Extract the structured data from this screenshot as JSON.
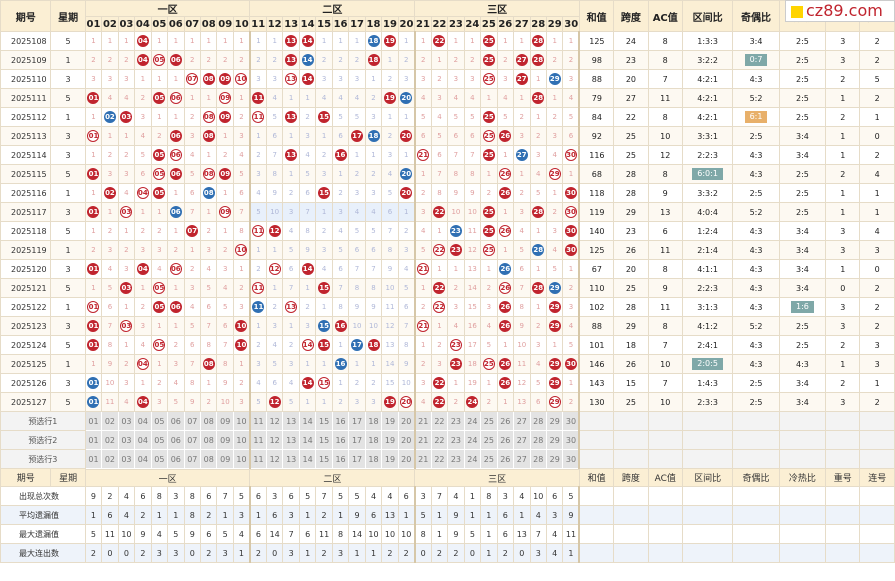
{
  "header": {
    "period": "期号",
    "week": "星期",
    "zones": [
      "一区",
      "二区",
      "三区"
    ],
    "stats": [
      "和值",
      "跨度",
      "AC值",
      "区间比",
      "奇偶比",
      "冷热比",
      "重号",
      "连号"
    ],
    "numbers": [
      "01",
      "02",
      "03",
      "04",
      "05",
      "06",
      "07",
      "08",
      "09",
      "10",
      "11",
      "12",
      "13",
      "14",
      "15",
      "16",
      "17",
      "18",
      "19",
      "20",
      "21",
      "22",
      "23",
      "24",
      "25",
      "26",
      "27",
      "28",
      "29",
      "30"
    ]
  },
  "rows": [
    {
      "period": "2025108",
      "week": "5",
      "balls": [
        4,
        13,
        14,
        18,
        19,
        22,
        25,
        28
      ],
      "blue": [
        18
      ],
      "sum": "125",
      "span": "24",
      "ac": "8",
      "zone": "1:3:3",
      "oe": "3:4",
      "hc": "2:5",
      "rep": "3",
      "con": "2"
    },
    {
      "period": "2025109",
      "week": "1",
      "balls": [
        4,
        5,
        6,
        13,
        14,
        18,
        25,
        27,
        28
      ],
      "blue": [
        14
      ],
      "sum": "98",
      "span": "23",
      "ac": "8",
      "zone": "3:2:2",
      "oe": "0:7",
      "hc": "2:5",
      "rep": "3",
      "con": "2",
      "oeTag": true
    },
    {
      "period": "2025110",
      "week": "3",
      "balls": [
        7,
        8,
        9,
        10,
        13,
        14,
        25,
        27,
        29
      ],
      "blue": [
        29
      ],
      "sum": "88",
      "span": "20",
      "ac": "7",
      "zone": "4:2:1",
      "oe": "4:3",
      "hc": "2:5",
      "rep": "2",
      "con": "5"
    },
    {
      "period": "2025111",
      "week": "5",
      "balls": [
        1,
        5,
        6,
        9,
        11,
        19,
        20,
        28
      ],
      "blue": [
        20
      ],
      "sum": "79",
      "span": "27",
      "ac": "11",
      "zone": "4:2:1",
      "oe": "5:2",
      "hc": "2:5",
      "rep": "1",
      "con": "2"
    },
    {
      "period": "2025112",
      "week": "1",
      "balls": [
        2,
        3,
        8,
        9,
        11,
        13,
        15,
        25
      ],
      "blue": [
        2
      ],
      "sum": "84",
      "span": "22",
      "ac": "8",
      "zone": "4:2:1",
      "oe": "6:1",
      "hc": "2:5",
      "rep": "2",
      "con": "1",
      "oeTag": true,
      "oeGold": true
    },
    {
      "period": "2025113",
      "week": "3",
      "balls": [
        1,
        6,
        8,
        17,
        18,
        20,
        25,
        26
      ],
      "blue": [
        18
      ],
      "sum": "92",
      "span": "25",
      "ac": "10",
      "zone": "3:3:1",
      "oe": "2:5",
      "hc": "3:4",
      "rep": "1",
      "con": "0"
    },
    {
      "period": "2025114",
      "week": "3",
      "balls": [
        5,
        6,
        13,
        16,
        21,
        25,
        27,
        30
      ],
      "blue": [
        27
      ],
      "sum": "116",
      "span": "25",
      "ac": "12",
      "zone": "2:2:3",
      "oe": "4:3",
      "hc": "3:4",
      "rep": "1",
      "con": "2"
    },
    {
      "period": "2025115",
      "week": "5",
      "balls": [
        1,
        5,
        6,
        8,
        9,
        20,
        26,
        29
      ],
      "blue": [
        20
      ],
      "sum": "68",
      "span": "28",
      "ac": "8",
      "zone": "6:0:1",
      "oe": "4:3",
      "hc": "2:5",
      "rep": "2",
      "con": "4",
      "zoneTag": true
    },
    {
      "period": "2025116",
      "week": "1",
      "balls": [
        2,
        4,
        5,
        8,
        15,
        20,
        26,
        30
      ],
      "blue": [
        8
      ],
      "sum": "118",
      "span": "28",
      "ac": "9",
      "zone": "3:3:2",
      "oe": "2:5",
      "hc": "2:5",
      "rep": "1",
      "con": "1"
    },
    {
      "period": "2025117",
      "week": "3",
      "balls": [
        1,
        3,
        6,
        9,
        22,
        25,
        28,
        30
      ],
      "blue": [
        6
      ],
      "sum": "119",
      "span": "29",
      "ac": "13",
      "zone": "4:0:4",
      "oe": "5:2",
      "hc": "2:5",
      "rep": "1",
      "con": "1",
      "hl": true
    },
    {
      "period": "2025118",
      "week": "5",
      "balls": [
        7,
        11,
        12,
        23,
        25,
        26,
        30
      ],
      "blue": [
        23
      ],
      "sum": "140",
      "span": "23",
      "ac": "6",
      "zone": "1:2:4",
      "oe": "4:3",
      "hc": "3:4",
      "rep": "3",
      "con": "4"
    },
    {
      "period": "2025119",
      "week": "1",
      "balls": [
        10,
        22,
        23,
        25,
        28,
        30
      ],
      "blue": [
        28
      ],
      "sum": "125",
      "span": "26",
      "ac": "11",
      "zone": "2:1:4",
      "oe": "4:3",
      "hc": "3:4",
      "rep": "3",
      "con": "3"
    },
    {
      "period": "2025120",
      "week": "3",
      "balls": [
        1,
        4,
        6,
        12,
        14,
        21,
        26
      ],
      "blue": [
        26
      ],
      "sum": "67",
      "span": "20",
      "ac": "8",
      "zone": "4:1:1",
      "oe": "4:3",
      "hc": "3:4",
      "rep": "1",
      "con": "0"
    },
    {
      "period": "2025121",
      "week": "5",
      "balls": [
        3,
        5,
        11,
        15,
        22,
        26,
        28,
        29
      ],
      "blue": [
        29
      ],
      "sum": "110",
      "span": "25",
      "ac": "9",
      "zone": "2:2:3",
      "oe": "4:3",
      "hc": "3:4",
      "rep": "0",
      "con": "2"
    },
    {
      "period": "2025122",
      "week": "1",
      "balls": [
        1,
        5,
        6,
        11,
        13,
        22,
        26,
        29
      ],
      "blue": [
        11
      ],
      "sum": "102",
      "span": "28",
      "ac": "11",
      "zone": "3:1:3",
      "oe": "4:3",
      "hc": "1:6",
      "rep": "3",
      "con": "2",
      "hcTag": true
    },
    {
      "period": "2025123",
      "week": "3",
      "balls": [
        1,
        3,
        10,
        15,
        16,
        21,
        26,
        29
      ],
      "blue": [
        15
      ],
      "sum": "88",
      "span": "29",
      "ac": "8",
      "zone": "4:1:2",
      "oe": "5:2",
      "hc": "2:5",
      "rep": "3",
      "con": "2"
    },
    {
      "period": "2025124",
      "week": "5",
      "balls": [
        1,
        5,
        10,
        14,
        15,
        17,
        18,
        23
      ],
      "blue": [
        17
      ],
      "sum": "101",
      "span": "18",
      "ac": "7",
      "zone": "2:4:1",
      "oe": "4:3",
      "hc": "2:5",
      "rep": "2",
      "con": "3"
    },
    {
      "period": "2025125",
      "week": "1",
      "balls": [
        4,
        8,
        16,
        23,
        25,
        26,
        29,
        30
      ],
      "blue": [
        16
      ],
      "sum": "146",
      "span": "26",
      "ac": "10",
      "zone": "2:0:5",
      "oe": "4:3",
      "hc": "4:3",
      "rep": "1",
      "con": "3",
      "zoneTag": true
    },
    {
      "period": "2025126",
      "week": "3",
      "balls": [
        1,
        14,
        15,
        22,
        26,
        29
      ],
      "blue": [
        1
      ],
      "sum": "143",
      "span": "15",
      "ac": "7",
      "zone": "1:4:3",
      "oe": "2:5",
      "hc": "3:4",
      "rep": "2",
      "con": "1"
    },
    {
      "period": "2025127",
      "week": "5",
      "balls": [
        1,
        4,
        12,
        19,
        20,
        22,
        24,
        29
      ],
      "blue": [
        1
      ],
      "sum": "130",
      "span": "25",
      "ac": "10",
      "zone": "2:3:3",
      "oe": "2:5",
      "hc": "3:4",
      "rep": "3",
      "con": "2"
    }
  ],
  "preselect": [
    "预选行1",
    "预选行2",
    "预选行3"
  ],
  "footer_stats": [
    {
      "label": "出现总次数",
      "values": [
        "9",
        "2",
        "4",
        "6",
        "8",
        "3",
        "8",
        "6",
        "7",
        "5",
        "6",
        "3",
        "6",
        "5",
        "7",
        "5",
        "5",
        "4",
        "4",
        "6",
        "3",
        "7",
        "4",
        "1",
        "8",
        "3",
        "4",
        "10",
        "6",
        "5"
      ]
    },
    {
      "label": "平均遗漏值",
      "values": [
        "1",
        "6",
        "4",
        "2",
        "1",
        "1",
        "8",
        "2",
        "1",
        "3",
        "1",
        "6",
        "3",
        "1",
        "2",
        "1",
        "9",
        "6",
        "13",
        "1",
        "5",
        "1",
        "9",
        "1",
        "1",
        "6",
        "1",
        "4",
        "3",
        "9"
      ]
    },
    {
      "label": "最大遗漏值",
      "values": [
        "5",
        "11",
        "10",
        "9",
        "4",
        "5",
        "9",
        "6",
        "5",
        "4",
        "6",
        "14",
        "7",
        "6",
        "11",
        "8",
        "14",
        "10",
        "10",
        "10",
        "8",
        "1",
        "9",
        "5",
        "1",
        "6",
        "13",
        "7",
        "4",
        "11"
      ]
    },
    {
      "label": "最大连出数",
      "values": [
        "2",
        "0",
        "0",
        "2",
        "3",
        "3",
        "0",
        "2",
        "3",
        "1",
        "2",
        "0",
        "3",
        "1",
        "2",
        "3",
        "1",
        "1",
        "2",
        "2",
        "0",
        "2",
        "2",
        "0",
        "1",
        "2",
        "0",
        "3",
        "4",
        "1"
      ]
    }
  ],
  "logo": "cz89.com"
}
